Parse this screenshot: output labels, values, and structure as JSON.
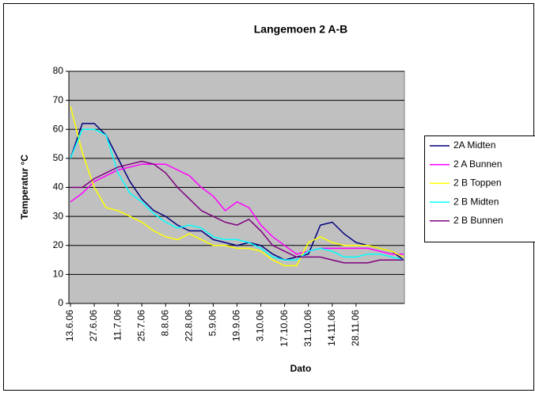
{
  "chart_data": {
    "type": "line",
    "title": "Langemoen 2 A-B",
    "xlabel": "Dato",
    "ylabel": "Temperatur °C",
    "categories": [
      "13.6.06",
      null,
      "27.6.06",
      null,
      "11.7.06",
      null,
      "25.7.06",
      null,
      "8.8.06",
      null,
      "22.8.06",
      null,
      "5.9.06",
      null,
      "19.9.06",
      null,
      "3.10.06",
      null,
      "17.10.06",
      null,
      "31.10.06",
      null,
      "14.11.06",
      null,
      "28.11.06",
      null,
      null,
      null,
      null
    ],
    "series": [
      {
        "name": "2A Midten",
        "color": "#000080",
        "values": [
          50,
          62,
          62,
          58,
          50,
          42,
          36,
          32,
          30,
          27,
          25,
          25,
          22,
          21,
          20,
          21,
          20,
          17,
          15,
          16,
          17,
          27,
          28,
          24,
          21,
          20,
          19,
          18,
          15
        ]
      },
      {
        "name": "2 A Bunnen",
        "color": "#ff00ff",
        "values": [
          35,
          38,
          42,
          44,
          46,
          47,
          48,
          48,
          48,
          46,
          44,
          40,
          37,
          32,
          35,
          33,
          27,
          23,
          20,
          17,
          18,
          19,
          19,
          19,
          19,
          19,
          18,
          17,
          17
        ]
      },
      {
        "name": "2 B Toppen",
        "color": "#ffff00",
        "values": [
          68,
          52,
          40,
          33,
          32,
          30,
          28,
          25,
          23,
          22,
          24,
          22,
          20,
          20,
          19,
          19,
          18,
          15,
          13,
          13,
          21,
          23,
          21,
          20,
          20,
          20,
          19,
          18,
          16
        ]
      },
      {
        "name": "2 B Midten",
        "color": "#00ffff",
        "values": [
          50,
          60,
          60,
          58,
          45,
          38,
          35,
          31,
          28,
          26,
          27,
          26,
          23,
          22,
          22,
          21,
          19,
          16,
          15,
          15,
          18,
          19,
          18,
          16,
          16,
          17,
          17,
          16,
          15
        ]
      },
      {
        "name": "2 B Bunnen",
        "color": "#800080",
        "values": [
          40,
          40,
          43,
          45,
          47,
          48,
          49,
          48,
          45,
          40,
          36,
          32,
          30,
          28,
          27,
          29,
          25,
          20,
          18,
          16,
          16,
          16,
          15,
          14,
          14,
          14,
          15,
          15,
          15
        ]
      }
    ],
    "ylim": [
      0,
      80
    ],
    "yticks": [
      0,
      10,
      20,
      30,
      40,
      50,
      60,
      70,
      80
    ],
    "grid": true,
    "plot_background": "#c0c0c0",
    "legend": "right"
  }
}
